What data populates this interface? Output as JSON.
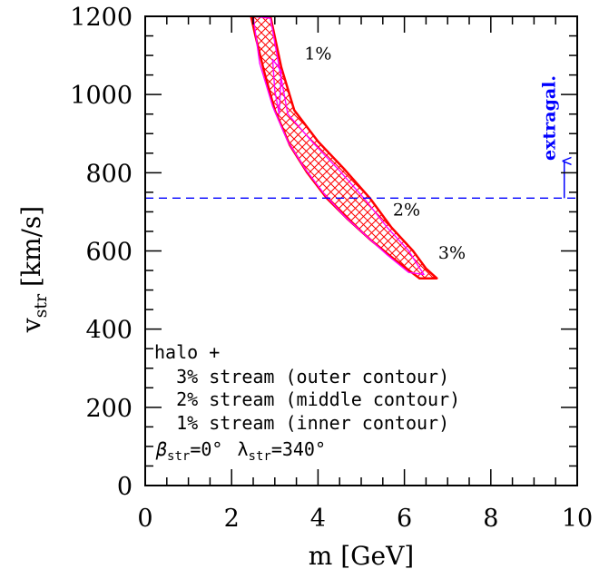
{
  "chart_data": {
    "type": "area",
    "xlabel": "m [GeV]",
    "ylabel_main": "v",
    "ylabel_sub": "str",
    "ylabel_unit": "[km/s]",
    "xlim": [
      0,
      10
    ],
    "ylim": [
      0,
      1200
    ],
    "xticks": [
      0,
      2,
      4,
      6,
      8,
      10
    ],
    "xtick_labels": [
      "0",
      "2",
      "4",
      "6",
      "8",
      "10"
    ],
    "yticks": [
      0,
      200,
      400,
      600,
      800,
      1000,
      1200
    ],
    "ytick_labels": [
      "0",
      "200",
      "400",
      "600",
      "800",
      "1000",
      "1200"
    ],
    "grid": false,
    "series": [
      {
        "name": "3% stream (outer contour)",
        "label": "3%",
        "label_at": [
          7.1,
          580
        ],
        "color": "#ff0000",
        "hatched": true,
        "x": [
          2.45,
          2.9,
          3.15,
          3.45,
          4.0,
          4.6,
          5.2,
          5.7,
          6.2,
          6.5,
          6.75,
          6.35,
          5.75,
          5.2,
          4.7,
          4.2,
          3.75,
          3.35,
          3.0,
          2.75,
          2.55,
          2.45
        ],
        "y": [
          1200,
          1200,
          1070,
          960,
          880,
          810,
          735,
          660,
          600,
          555,
          530,
          530,
          580,
          630,
          680,
          735,
          800,
          870,
          960,
          1060,
          1150,
          1200
        ]
      },
      {
        "name": "2% stream (middle contour)",
        "label": "2%",
        "label_at": [
          6.05,
          690
        ],
        "color": "#ff00ff",
        "x": [
          2.5,
          2.9,
          3.1,
          3.3,
          3.9,
          4.5,
          5.1,
          5.6,
          6.1,
          6.3,
          6.45,
          6.1,
          5.6,
          5.1,
          4.6,
          4.15,
          3.7,
          3.3,
          2.95,
          2.65,
          2.5
        ],
        "y": [
          1200,
          1195,
          1070,
          950,
          875,
          805,
          730,
          660,
          600,
          565,
          540,
          545,
          590,
          640,
          690,
          745,
          810,
          880,
          970,
          1080,
          1200
        ]
      },
      {
        "name": "1% stream (inner contour)",
        "label": "1%",
        "label_at": [
          4.0,
          1090
        ],
        "color": "#ff00ff",
        "x": [
          2.95,
          3.15,
          3.1,
          3.0,
          2.95
        ],
        "y": [
          1090,
          1060,
          950,
          1010,
          1090
        ]
      }
    ],
    "reference_line": {
      "y": 735,
      "color": "#0000ff",
      "style": "dashed",
      "arrow_x": 9.7,
      "arrow_y_from": 735,
      "arrow_y_to": 830,
      "label": "extragal."
    },
    "legend": {
      "placement": "bottom-left",
      "lines": [
        "halo +",
        "  3% stream (outer contour)",
        "  2% stream (middle contour)",
        "  1% stream (inner contour)"
      ]
    },
    "parameters": {
      "beta_symbol": "β",
      "beta_sub": "str",
      "beta_value": "=0°",
      "lambda_symbol": "λ",
      "lambda_sub": "str",
      "lambda_value": "=340°"
    }
  }
}
